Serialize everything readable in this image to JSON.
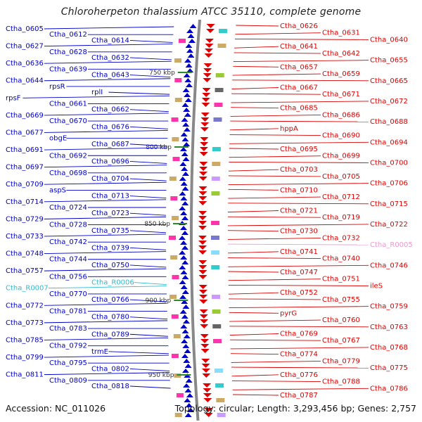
{
  "title": "Chloroherpeton thalassium ATCC 35110, complete genome",
  "footer": {
    "accession": "Accession: NC_011026",
    "topology": "Topology: circular; Length: 3,293,456 bp; Genes: 2,757"
  },
  "ticks": [
    "750 kbp",
    "800 kbp",
    "850 kbp",
    "900 kbp",
    "950 kbp"
  ],
  "colors": {
    "forward_genes": "#0000cc",
    "reverse_genes": "#dd0000",
    "rna_forward": "#33bbcc",
    "rna_reverse": "#ee99cc",
    "backbone": "#888888"
  },
  "left_labels": [
    "Ctha_0605",
    "Ctha_0612",
    "Ctha_0614",
    "Ctha_0627",
    "Ctha_0628",
    "Ctha_0632",
    "Ctha_0636",
    "Ctha_0639",
    "Ctha_0643",
    "Ctha_0644",
    "rpsR",
    "rplI",
    "rpsF",
    "Ctha_0661",
    "Ctha_0662",
    "Ctha_0669",
    "Ctha_0670",
    "Ctha_0676",
    "Ctha_0677",
    "obgE",
    "Ctha_0687",
    "Ctha_0691",
    "Ctha_0692",
    "Ctha_0696",
    "Ctha_0697",
    "Ctha_0698",
    "Ctha_0704",
    "Ctha_0709",
    "aspS",
    "Ctha_0713",
    "Ctha_0714",
    "Ctha_0724",
    "Ctha_0723",
    "Ctha_0729",
    "Ctha_0728",
    "Ctha_0735",
    "Ctha_0733",
    "Ctha_0742",
    "Ctha_0739",
    "Ctha_0748",
    "Ctha_0744",
    "Ctha_0750",
    "Ctha_0757",
    "Ctha_0756",
    "Ctha_R0006",
    "Ctha_R0007",
    "Ctha_0770",
    "Ctha_0766",
    "Ctha_0772",
    "Ctha_0781",
    "Ctha_0780",
    "Ctha_0773",
    "Ctha_0783",
    "Ctha_0789",
    "Ctha_0785",
    "Ctha_0792",
    "trmE",
    "Ctha_0799",
    "Ctha_0795",
    "Ctha_0802",
    "Ctha_0811",
    "Ctha_0809",
    "Ctha_0818"
  ],
  "right_labels": [
    "Ctha_0626",
    "Ctha_0631",
    "Ctha_0640",
    "Ctha_0641",
    "Ctha_0642",
    "Ctha_0655",
    "Ctha_0657",
    "Ctha_0659",
    "Ctha_0665",
    "Ctha_0667",
    "Ctha_0671",
    "Ctha_0672",
    "Ctha_0685",
    "Ctha_0686",
    "Ctha_0688",
    "hppA",
    "Ctha_0690",
    "Ctha_0694",
    "Ctha_0695",
    "Ctha_0699",
    "Ctha_0700",
    "Ctha_0703",
    "Ctha_0705",
    "Ctha_0706",
    "Ctha_0710",
    "Ctha_0712",
    "Ctha_0715",
    "Ctha_0721",
    "Ctha_0719",
    "Ctha_0722",
    "Ctha_0730",
    "Ctha_0732",
    "Ctha_R0005",
    "Ctha_0741",
    "Ctha_0740",
    "Ctha_0746",
    "Ctha_0747",
    "Ctha_0751",
    "ileS",
    "Ctha_0752",
    "Ctha_0755",
    "Ctha_0759",
    "pyrG",
    "Ctha_0760",
    "Ctha_0763",
    "Ctha_0769",
    "Ctha_0767",
    "Ctha_0768",
    "Ctha_0774",
    "Ctha_0779",
    "Ctha_0775",
    "Ctha_0776",
    "Ctha_0788",
    "Ctha_0786",
    "Ctha_0787"
  ]
}
